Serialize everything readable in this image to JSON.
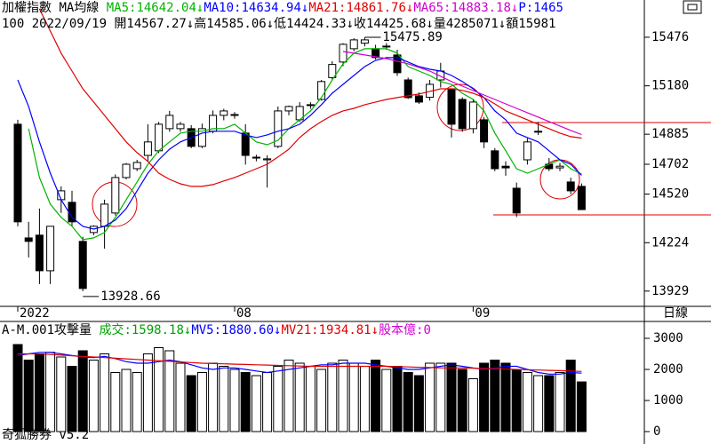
{
  "chart_data": [
    {
      "type": "candlestick",
      "title": "加權指數",
      "subtitle": "MA均線",
      "info": "100 2022/09/19 開14567.27↓高14585.06↓低14424.33↓收14425.68↓量4285071↓額15981",
      "header_extra": {
        "text": "P:1465",
        "color": "#0000ff"
      },
      "period": "日線",
      "max_label": "15475.89",
      "min_label": "13928.66",
      "categories": [
        "2022",
        null,
        null,
        null,
        null,
        null,
        null,
        null,
        null,
        null,
        null,
        null,
        null,
        null,
        null,
        null,
        null,
        null,
        null,
        null,
        "08",
        null,
        null,
        null,
        null,
        null,
        null,
        null,
        null,
        null,
        null,
        null,
        null,
        null,
        null,
        null,
        null,
        null,
        null,
        null,
        null,
        null,
        "09",
        null,
        null,
        null,
        null,
        null,
        null,
        null,
        null,
        null,
        null
      ],
      "open": [
        14946,
        14253,
        14270,
        14053,
        14486,
        14470,
        14232,
        14286,
        14324,
        14405,
        14621,
        14675,
        14756,
        14784,
        14919,
        14919,
        14919,
        14811,
        14903,
        15000,
        15000,
        14892,
        14740,
        14729,
        14811,
        15027,
        14973,
        15060,
        15097,
        15230,
        15325,
        15406,
        15440,
        15406,
        15420,
        15368,
        15216,
        15119,
        15110,
        15216,
        15162,
        15097,
        14919,
        14973,
        14784,
        14690,
        14556,
        14729,
        14900,
        14702,
        14680,
        14594,
        14567.27
      ],
      "high": [
        14973,
        14351,
        14432,
        14324,
        14567,
        14540,
        14260,
        14330,
        14486,
        14640,
        14710,
        14729,
        14946,
        14960,
        15027,
        14960,
        14940,
        14950,
        15030,
        15040,
        15020,
        14946,
        14760,
        14756,
        15054,
        15060,
        15080,
        15080,
        15216,
        15330,
        15440,
        15470,
        15475.89,
        15430,
        15440,
        15400,
        15230,
        15140,
        15216,
        15320,
        15162,
        15110,
        15100,
        14990,
        14800,
        14720,
        14590,
        14860,
        14960,
        14740,
        14710,
        14620,
        14585.06
      ],
      "low": [
        14324,
        14134,
        13972,
        13972,
        14405,
        14324,
        13928.66,
        14270,
        14188,
        14390,
        14610,
        14660,
        14720,
        14770,
        14900,
        14900,
        14800,
        14800,
        14890,
        14970,
        14980,
        14700,
        14720,
        14560,
        14800,
        15000,
        14960,
        15040,
        15090,
        15220,
        15300,
        15390,
        15420,
        15340,
        15400,
        15240,
        15100,
        15070,
        15090,
        15170,
        14865,
        14900,
        14890,
        14800,
        14660,
        14632,
        14380,
        14700,
        14880,
        14660,
        14660,
        14520,
        14424.33
      ],
      "close": [
        14351,
        14232,
        14053,
        14324,
        14540,
        14351,
        13945,
        14324,
        14459,
        14621,
        14702,
        14713,
        14838,
        14946,
        15000,
        14946,
        14811,
        14919,
        15000,
        15027,
        15005,
        14756,
        14745,
        14735,
        15027,
        15054,
        15054,
        15065,
        15206,
        15310,
        15433,
        15460,
        15460,
        15352,
        15422,
        15260,
        15108,
        15081,
        15189,
        15270,
        14946,
        14919,
        15081,
        14838,
        14675,
        14680,
        14405,
        14838,
        14903,
        14675,
        14690,
        14540,
        14425.68
      ],
      "series": [
        {
          "name": "MA5:14642.04↓",
          "color": "#00b400",
          "values": [
            null,
            14919,
            14621,
            14459,
            14378,
            14324,
            14243,
            14253,
            14286,
            14378,
            14486,
            14594,
            14702,
            14784,
            14838,
            14892,
            14903,
            14903,
            14919,
            14919,
            14946,
            14892,
            14838,
            14821,
            14848,
            14919,
            14973,
            15027,
            15108,
            15216,
            15314,
            15379,
            15406,
            15406,
            15406,
            15379,
            15297,
            15270,
            15243,
            15206,
            15189,
            15135,
            15097,
            15027,
            14892,
            14784,
            14675,
            14648,
            14675,
            14702,
            14729,
            14675,
            14642.04
          ]
        },
        {
          "name": "MA10:14634.94↓",
          "color": "#0000ff",
          "values": [
            15216,
            15054,
            14838,
            14648,
            14486,
            14378,
            14324,
            14307,
            14324,
            14362,
            14432,
            14540,
            14648,
            14729,
            14794,
            14838,
            14865,
            14892,
            14903,
            14903,
            14903,
            14881,
            14865,
            14881,
            14903,
            14919,
            14946,
            15000,
            15065,
            15135,
            15189,
            15243,
            15297,
            15335,
            15352,
            15352,
            15325,
            15297,
            15281,
            15270,
            15243,
            15206,
            15162,
            15108,
            15027,
            14973,
            14892,
            14865,
            14838,
            14784,
            14729,
            14702,
            14634.94
          ]
        },
        {
          "name": "MA21:14861.76↓",
          "color": "#e00000",
          "values": [
            null,
            null,
            15649,
            15514,
            15379,
            15270,
            15162,
            15081,
            15000,
            14919,
            14838,
            14773,
            14719,
            14648,
            14610,
            14583,
            14567,
            14567,
            14578,
            14600,
            14621,
            14648,
            14675,
            14702,
            14746,
            14794,
            14865,
            14919,
            14962,
            15000,
            15027,
            15043,
            15065,
            15081,
            15097,
            15108,
            15119,
            15130,
            15146,
            15162,
            15162,
            15152,
            15135,
            15108,
            15070,
            15027,
            15000,
            14973,
            14946,
            14919,
            14892,
            14870,
            14861.76
          ]
        },
        {
          "name": "MA65:14883.18↓",
          "color": "#d000d0",
          "values": [
            null,
            null,
            null,
            null,
            null,
            null,
            null,
            null,
            null,
            null,
            null,
            null,
            null,
            null,
            null,
            null,
            null,
            null,
            null,
            null,
            null,
            null,
            null,
            null,
            null,
            null,
            null,
            null,
            null,
            null,
            15389,
            15379,
            15368,
            15357,
            15346,
            15330,
            15314,
            15292,
            15270,
            15238,
            15206,
            15178,
            15151,
            15124,
            15097,
            15070,
            15043,
            15016,
            14989,
            14962,
            14935,
            14908,
            14883.18
          ]
        }
      ],
      "ylim": [
        13836,
        15703
      ],
      "yticks": [
        15476,
        15180,
        14885,
        14702,
        14520,
        14224,
        13929
      ]
    },
    {
      "type": "bar",
      "title": "A-M.001攻擊量",
      "header_items": [
        {
          "text": "成交:1598.18↓",
          "color": "#00a000"
        }
      ],
      "header_extra": {
        "text": "股本億:0",
        "color": "#d000d0"
      },
      "footer": "奇狐勝券 v5.2",
      "values": [
        2800,
        2300,
        2500,
        2550,
        2400,
        2100,
        2600,
        2300,
        2500,
        1900,
        2000,
        1900,
        2500,
        2700,
        2600,
        2200,
        1800,
        1900,
        2200,
        2100,
        2000,
        1900,
        1800,
        1900,
        2100,
        2300,
        2200,
        2100,
        2000,
        2200,
        2300,
        2200,
        2100,
        2300,
        2000,
        2100,
        1900,
        1800,
        2200,
        2200,
        2200,
        2000,
        1700,
        2200,
        2300,
        2200,
        2000,
        1900,
        1800,
        1800,
        1900,
        2300,
        1598.18
      ],
      "series": [
        {
          "name": "MV5:1880.60↓",
          "color": "#0000ff",
          "values": [
            2450,
            2500,
            2550,
            2550,
            2500,
            2450,
            2400,
            2380,
            2420,
            2350,
            2250,
            2200,
            2200,
            2250,
            2300,
            2250,
            2150,
            2050,
            2000,
            2050,
            2050,
            2000,
            1950,
            1900,
            1950,
            2000,
            2050,
            2100,
            2150,
            2150,
            2200,
            2200,
            2200,
            2150,
            2100,
            2050,
            2000,
            2000,
            2050,
            2100,
            2150,
            2100,
            2050,
            2000,
            2050,
            2100,
            2100,
            2000,
            1900,
            1850,
            1850,
            1900,
            1880.6
          ]
        },
        {
          "name": "MV21:1934.81↓",
          "color": "#e00000",
          "values": [
            2500,
            2500,
            2500,
            2480,
            2460,
            2440,
            2420,
            2400,
            2380,
            2360,
            2340,
            2320,
            2300,
            2280,
            2260,
            2240,
            2220,
            2200,
            2190,
            2180,
            2170,
            2160,
            2150,
            2140,
            2130,
            2120,
            2110,
            2100,
            2100,
            2100,
            2100,
            2100,
            2100,
            2100,
            2100,
            2090,
            2080,
            2070,
            2060,
            2050,
            2050,
            2050,
            2040,
            2030,
            2020,
            2010,
            2000,
            1990,
            1980,
            1970,
            1960,
            1950,
            1934.81
          ]
        }
      ],
      "ylim": [
        -400,
        3543
      ],
      "yticks": [
        0,
        1000,
        2000,
        3000
      ]
    }
  ]
}
